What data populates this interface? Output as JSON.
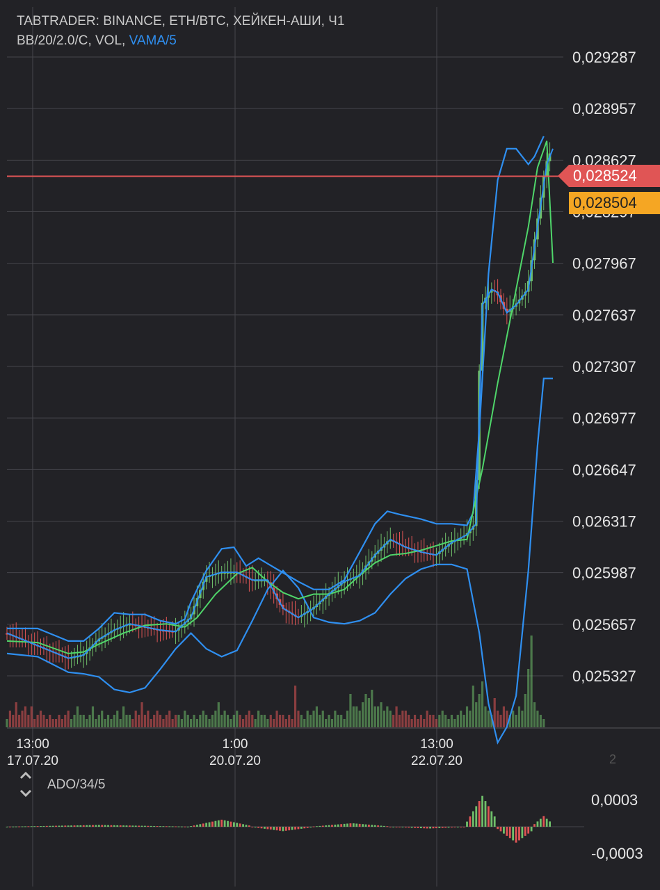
{
  "header": {
    "line1": "TABTRADER: BINANCE, ETH/BTC, ХЕЙКЕН-АШИ, Ч1",
    "line2_prefix": "BB/20/2.0/C, VOL, ",
    "line2_vama": "VAMA/5"
  },
  "price_tags": {
    "last": "0,028524",
    "secondary": "0,028504"
  },
  "indicator": {
    "label": "ADO/34/5",
    "up_icon": "chevron-up-icon",
    "down_icon": "chevron-down-icon",
    "pane_number": "2"
  },
  "colors": {
    "background": "#222226",
    "grid": "#46464c",
    "up_candle": "#6fbf6a",
    "down_candle": "#e05555",
    "bollinger": "#2f8ff0",
    "middle_band": "#4fd66a",
    "last_price_line": "#e05555",
    "secondary_tag": "#f5a623"
  },
  "chart_data": [
    {
      "type": "candlestick",
      "title": "",
      "y_tick_labels": [
        "0,029287",
        "0,028957",
        "0,028627",
        "0,028297",
        "0,027967",
        "0,027637",
        "0,027307",
        "0,026977",
        "0,026647",
        "0,026317",
        "0,025987",
        "0,025657",
        "0,025327"
      ],
      "y_ticks": [
        0.029287,
        0.028957,
        0.028627,
        0.028297,
        0.027967,
        0.027637,
        0.027307,
        0.026977,
        0.026647,
        0.026317,
        0.025987,
        0.025657,
        0.025327
      ],
      "ylim": [
        0.0251,
        0.02943
      ],
      "x_tick_labels": [
        {
          "time": "13:00",
          "date": "17.07.20"
        },
        {
          "time": "1:00",
          "date": "20.07.20"
        },
        {
          "time": "13:00",
          "date": "22.07.20"
        }
      ],
      "last_price": 0.028524,
      "series": [
        {
          "name": "BB/20/2.0/C upper",
          "points": [
            [
              0,
              0.02563
            ],
            [
              10,
              0.02563
            ],
            [
              15,
              0.02559
            ],
            [
              20,
              0.02555
            ],
            [
              25,
              0.02555
            ],
            [
              30,
              0.02563
            ],
            [
              35,
              0.02573
            ],
            [
              40,
              0.02572
            ],
            [
              45,
              0.02572
            ],
            [
              50,
              0.02568
            ],
            [
              55,
              0.02566
            ],
            [
              58,
              0.02569
            ],
            [
              60,
              0.0258
            ],
            [
              65,
              0.026
            ],
            [
              70,
              0.02614
            ],
            [
              74,
              0.02615
            ],
            [
              78,
              0.02603
            ],
            [
              82,
              0.02608
            ],
            [
              88,
              0.02601
            ],
            [
              95,
              0.02593
            ],
            [
              100,
              0.02588
            ],
            [
              105,
              0.02588
            ],
            [
              110,
              0.02594
            ],
            [
              115,
              0.02612
            ],
            [
              120,
              0.0263
            ],
            [
              124,
              0.02638
            ],
            [
              128,
              0.02636
            ],
            [
              135,
              0.02633
            ],
            [
              140,
              0.0263
            ],
            [
              145,
              0.0263
            ],
            [
              150,
              0.02629
            ],
            [
              152,
              0.02637
            ],
            [
              154,
              0.0269
            ],
            [
              157,
              0.0279
            ],
            [
              160,
              0.0285
            ],
            [
              163,
              0.0287
            ],
            [
              166,
              0.0287
            ],
            [
              170,
              0.0286
            ],
            [
              172,
              0.02865
            ],
            [
              175,
              0.02878
            ]
          ]
        },
        {
          "name": "BB/20/2.0/C middle",
          "points": [
            [
              0,
              0.02555
            ],
            [
              10,
              0.02554
            ],
            [
              20,
              0.02547
            ],
            [
              25,
              0.02548
            ],
            [
              30,
              0.02553
            ],
            [
              38,
              0.0256
            ],
            [
              45,
              0.02565
            ],
            [
              52,
              0.02566
            ],
            [
              58,
              0.02564
            ],
            [
              62,
              0.0257
            ],
            [
              68,
              0.02585
            ],
            [
              75,
              0.02598
            ],
            [
              80,
              0.02602
            ],
            [
              85,
              0.02593
            ],
            [
              90,
              0.02586
            ],
            [
              95,
              0.02582
            ],
            [
              100,
              0.02585
            ],
            [
              105,
              0.02585
            ],
            [
              110,
              0.02588
            ],
            [
              115,
              0.02597
            ],
            [
              120,
              0.02605
            ],
            [
              125,
              0.0261
            ],
            [
              130,
              0.02611
            ],
            [
              135,
              0.02613
            ],
            [
              140,
              0.02616
            ],
            [
              145,
              0.02619
            ],
            [
              150,
              0.0262
            ],
            [
              155,
              0.02665
            ],
            [
              160,
              0.0272
            ],
            [
              165,
              0.0277
            ],
            [
              170,
              0.0282
            ],
            [
              173,
              0.02858
            ],
            [
              176,
              0.02875
            ],
            [
              178,
              0.02797
            ]
          ]
        },
        {
          "name": "BB/20/2.0/C lower",
          "points": [
            [
              0,
              0.02547
            ],
            [
              10,
              0.02545
            ],
            [
              15,
              0.0254
            ],
            [
              20,
              0.02535
            ],
            [
              25,
              0.02534
            ],
            [
              30,
              0.02532
            ],
            [
              35,
              0.02524
            ],
            [
              40,
              0.02522
            ],
            [
              45,
              0.02525
            ],
            [
              50,
              0.02537
            ],
            [
              55,
              0.0255
            ],
            [
              60,
              0.0256
            ],
            [
              65,
              0.0255
            ],
            [
              70,
              0.02545
            ],
            [
              75,
              0.02549
            ],
            [
              80,
              0.02568
            ],
            [
              85,
              0.02588
            ],
            [
              90,
              0.026
            ],
            [
              95,
              0.02589
            ],
            [
              100,
              0.0257
            ],
            [
              105,
              0.02567
            ],
            [
              110,
              0.02566
            ],
            [
              115,
              0.02568
            ],
            [
              120,
              0.02573
            ],
            [
              125,
              0.02585
            ],
            [
              130,
              0.02595
            ],
            [
              135,
              0.02601
            ],
            [
              140,
              0.02604
            ],
            [
              145,
              0.02604
            ],
            [
              150,
              0.02601
            ],
            [
              154,
              0.0256
            ],
            [
              157,
              0.02515
            ],
            [
              160,
              0.0249
            ],
            [
              163,
              0.025
            ],
            [
              166,
              0.0252
            ],
            [
              170,
              0.026
            ],
            [
              173,
              0.0268
            ],
            [
              175,
              0.02723
            ],
            [
              178,
              0.02723
            ]
          ]
        },
        {
          "name": "VAMA/5",
          "points": [
            [
              0,
              0.0256
            ],
            [
              10,
              0.02552
            ],
            [
              20,
              0.02544
            ],
            [
              25,
              0.02546
            ],
            [
              30,
              0.02556
            ],
            [
              35,
              0.02562
            ],
            [
              40,
              0.02566
            ],
            [
              45,
              0.02564
            ],
            [
              50,
              0.02562
            ],
            [
              55,
              0.02561
            ],
            [
              60,
              0.0257
            ],
            [
              65,
              0.02596
            ],
            [
              70,
              0.02599
            ],
            [
              75,
              0.02599
            ],
            [
              80,
              0.02594
            ],
            [
              85,
              0.02594
            ],
            [
              90,
              0.02576
            ],
            [
              95,
              0.0257
            ],
            [
              100,
              0.02576
            ],
            [
              105,
              0.02585
            ],
            [
              110,
              0.02593
            ],
            [
              115,
              0.02597
            ],
            [
              120,
              0.0261
            ],
            [
              125,
              0.0262
            ],
            [
              130,
              0.02615
            ],
            [
              135,
              0.02612
            ],
            [
              140,
              0.0261
            ],
            [
              145,
              0.02618
            ],
            [
              150,
              0.02623
            ],
            [
              153,
              0.0263
            ],
            [
              155,
              0.0277
            ],
            [
              158,
              0.0278
            ],
            [
              160,
              0.02778
            ],
            [
              163,
              0.02765
            ],
            [
              166,
              0.0277
            ],
            [
              170,
              0.0278
            ],
            [
              173,
              0.0282
            ],
            [
              176,
              0.0286
            ],
            [
              178,
              0.0287
            ]
          ]
        }
      ]
    },
    {
      "type": "bar",
      "title": "VOL",
      "description_values": "relative volume per hourly candle, 0-1 scale",
      "values": [
        0.2,
        0.4,
        0.3,
        0.6,
        0.3,
        0.4,
        0.5,
        0.3,
        0.5,
        0.2,
        0.3,
        0.4,
        0.3,
        0.2,
        0.3,
        0.2,
        0.2,
        0.3,
        0.2,
        0.3,
        0.4,
        0.2,
        0.3,
        0.5,
        0.3,
        0.3,
        0.2,
        0.3,
        0.5,
        0.2,
        0.3,
        0.4,
        0.2,
        0.3,
        0.2,
        0.3,
        0.4,
        0.2,
        0.5,
        0.3,
        0.3,
        0.2,
        0.4,
        0.3,
        0.6,
        0.3,
        0.4,
        0.2,
        0.3,
        0.4,
        0.3,
        0.2,
        0.3,
        0.4,
        0.2,
        0.3,
        0.3,
        0.2,
        0.4,
        0.3,
        0.2,
        0.3,
        0.2,
        0.3,
        0.4,
        0.3,
        0.2,
        0.3,
        0.4,
        0.6,
        0.3,
        0.4,
        0.3,
        0.2,
        0.3,
        0.4,
        0.3,
        0.2,
        0.3,
        0.4,
        0.3,
        0.2,
        0.4,
        0.3,
        0.3,
        0.2,
        0.3,
        0.2,
        0.4,
        0.3,
        0.3,
        0.2,
        0.3,
        0.2,
        1.0,
        0.4,
        0.3,
        0.2,
        0.4,
        0.3,
        0.4,
        0.5,
        0.3,
        0.4,
        0.2,
        0.3,
        0.2,
        0.4,
        0.3,
        0.3,
        0.2,
        0.4,
        0.8,
        0.5,
        0.5,
        0.4,
        0.6,
        0.8,
        0.7,
        0.9,
        0.5,
        0.5,
        0.6,
        0.4,
        0.5,
        0.4,
        0.3,
        0.5,
        0.3,
        0.4,
        0.4,
        0.3,
        0.2,
        0.3,
        0.2,
        0.3,
        0.2,
        0.4,
        0.3,
        0.3,
        0.2,
        0.3,
        0.4,
        0.3,
        0.2,
        0.3,
        0.2,
        0.3,
        0.4,
        0.3,
        0.5,
        0.4,
        1.0,
        0.6,
        0.8,
        1.1,
        0.5,
        0.4,
        0.3,
        0.7,
        0.4,
        0.3,
        0.5,
        0.4,
        0.3,
        0.4,
        0.3,
        0.5,
        0.4,
        0.8,
        1.4,
        2.2,
        0.6,
        0.4,
        0.3,
        0.2
      ],
      "colors_up_down": "green when candle up, red when candle down"
    },
    {
      "type": "bar",
      "title": "ADO/34/5",
      "y_tick_labels": [
        "0,0003",
        "-0,0003"
      ],
      "ylim": [
        -0.0004,
        0.0004
      ],
      "values_note": "oscillator histogram",
      "segments": [
        {
          "from": 0,
          "to": 60,
          "amp": 2e-05
        },
        {
          "from": 60,
          "to": 80,
          "amp": 8e-05
        },
        {
          "from": 80,
          "to": 100,
          "amp": -5e-05
        },
        {
          "from": 100,
          "to": 125,
          "amp": 4e-05
        },
        {
          "from": 125,
          "to": 150,
          "amp": -2e-05
        },
        {
          "from": 150,
          "to": 160,
          "amp": 0.00035
        },
        {
          "from": 160,
          "to": 172,
          "amp": -0.00018
        },
        {
          "from": 172,
          "to": 178,
          "amp": 0.00012
        }
      ]
    }
  ]
}
